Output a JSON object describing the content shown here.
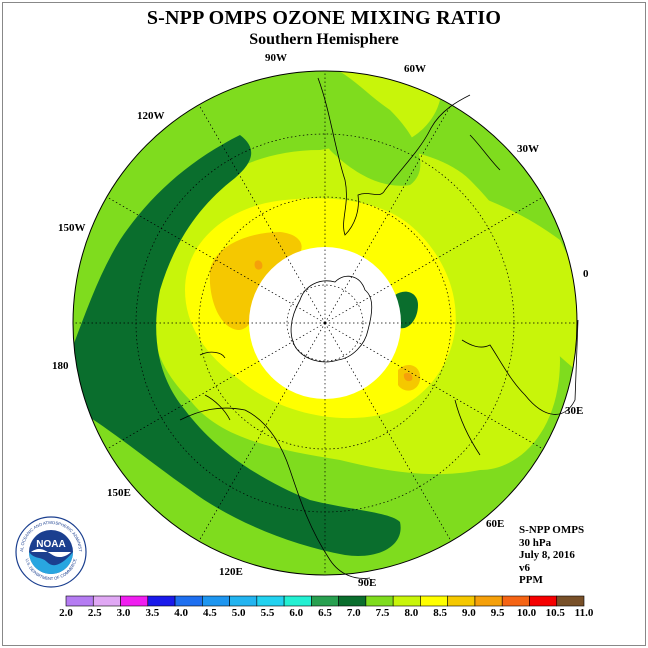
{
  "title": "S-NPP OMPS OZONE MIXING RATIO",
  "subtitle": "Southern Hemisphere",
  "longitude_labels": [
    "90W",
    "60W",
    "30W",
    "0",
    "30E",
    "60E",
    "90E",
    "120E",
    "150E",
    "180",
    "150W",
    "120W"
  ],
  "info": {
    "satellite": "S-NPP OMPS",
    "level": "30 hPa",
    "date": "July 8, 2016",
    "version": "v6",
    "units": "PPM"
  },
  "colorbar": {
    "ticks": [
      "2.0",
      "2.5",
      "3.0",
      "3.5",
      "4.0",
      "4.5",
      "5.0",
      "5.5",
      "6.0",
      "6.5",
      "7.0",
      "7.5",
      "8.0",
      "8.5",
      "9.0",
      "9.5",
      "10.0",
      "10.5",
      "11.0"
    ],
    "colors": [
      "#b57cf2",
      "#e0a8f4",
      "#f01ef0",
      "#1a1aeb",
      "#1e6ff0",
      "#1e96f0",
      "#23b4f0",
      "#23d2f0",
      "#23f0d2",
      "#28a050",
      "#0a6e2d",
      "#7fdc1e",
      "#c8f50a",
      "#ffff00",
      "#f5c800",
      "#f5a00a",
      "#f56414",
      "#f50000",
      "#785028"
    ]
  },
  "logo_text": {
    "name": "NOAA",
    "ring_top": "NATIONAL OCEANIC AND ATMOSPHERIC ADMINISTRATION",
    "ring_bottom": "U.S. DEPARTMENT OF COMMERCE"
  },
  "map": {
    "projection": "south polar stereographic",
    "missing_data_region": "polar night (white disc)"
  }
}
